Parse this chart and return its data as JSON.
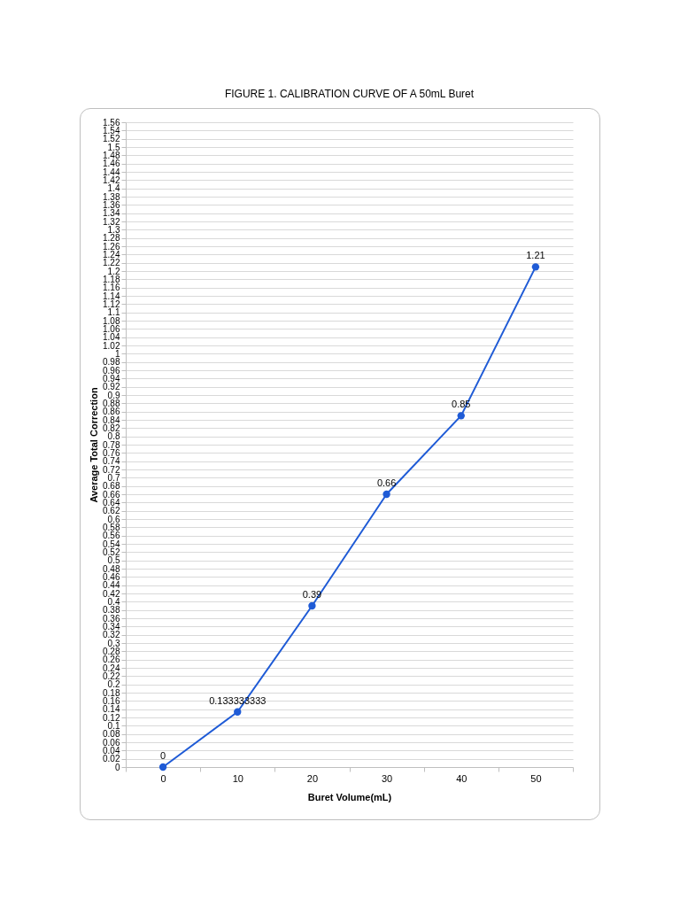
{
  "chart_data": {
    "type": "line",
    "title": "FIGURE 1. CALIBRATION CURVE OF A 50mL Buret",
    "xlabel": "Buret Volume(mL)",
    "ylabel": "Average Total Correction",
    "categories": [
      "0",
      "10",
      "20",
      "30",
      "40",
      "50"
    ],
    "series": [
      {
        "color": "#1f5bd6",
        "values": [
          0,
          0.133333333,
          0.39,
          0.66,
          0.85,
          1.21
        ]
      }
    ],
    "data_labels": true,
    "marker": "circle",
    "line_style": "solid",
    "grid": "y",
    "ylim": [
      0,
      1.56
    ],
    "yticks": [
      0,
      0.02,
      0.04,
      0.06,
      0.08,
      0.1,
      0.12,
      0.14,
      0.16,
      0.18,
      0.2,
      0.22,
      0.24,
      0.26,
      0.28,
      0.3,
      0.32,
      0.34,
      0.36,
      0.38,
      0.4,
      0.42,
      0.44,
      0.46,
      0.48,
      0.5,
      0.52,
      0.54,
      0.56,
      0.58,
      0.6,
      0.62,
      0.64,
      0.66,
      0.68,
      0.7,
      0.72,
      0.74,
      0.76,
      0.78,
      0.8,
      0.82,
      0.84,
      0.86,
      0.88,
      0.9,
      0.92,
      0.94,
      0.96,
      0.98,
      1,
      1.02,
      1.04,
      1.06,
      1.08,
      1.1,
      1.12,
      1.14,
      1.16,
      1.18,
      1.2,
      1.22,
      1.24,
      1.26,
      1.28,
      1.3,
      1.32,
      1.34,
      1.36,
      1.38,
      1.4,
      1.42,
      1.44,
      1.46,
      1.48,
      1.5,
      1.52,
      1.54,
      1.56
    ]
  }
}
